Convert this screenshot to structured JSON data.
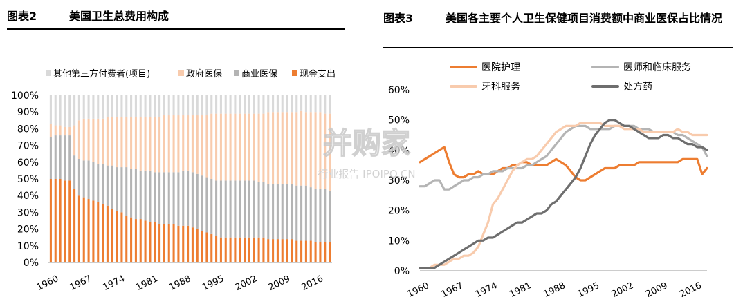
{
  "panel1": {
    "figno": "图表2",
    "title": "美国卫生总费用构成"
  },
  "panel2": {
    "figno": "图表3",
    "title": "美国各主要个人卫生保健项目消费额中商业医保占比情况"
  },
  "watermark": {
    "main": "并购家",
    "sub": "行业报告 IPOIPO.CN"
  },
  "colors": {
    "orange": "#ED7D31",
    "lightorange": "#F8CBAD",
    "gray": "#B4B4B4",
    "lightgray": "#D9D9D9",
    "darkgray": "#6E6E6E"
  },
  "chart_data": [
    {
      "type": "bar",
      "stacked": true,
      "percent": true,
      "x_start": 1960,
      "x_end": 2019,
      "x_ticks": [
        "1960",
        "1967",
        "1974",
        "1981",
        "1988",
        "1995",
        "2002",
        "2009",
        "2016"
      ],
      "y_ticks": [
        "0%",
        "10%",
        "20%",
        "30%",
        "40%",
        "50%",
        "60%",
        "70%",
        "80%",
        "90%",
        "100%"
      ],
      "ylim": [
        0,
        100
      ],
      "legend_position": "top",
      "series": [
        {
          "name": "其他第三方付费者(项目)",
          "color": "#D9D9D9",
          "values": "remainder to 100%"
        },
        {
          "name": "政府医保",
          "color": "#F8CBAD",
          "cumulative_top": [
            83,
            82,
            82,
            81,
            81,
            82,
            85,
            86,
            86,
            86,
            86,
            86,
            87,
            87,
            87,
            87,
            87,
            87,
            87,
            87,
            87,
            87,
            87,
            87,
            88,
            88,
            88,
            88,
            88,
            88,
            88,
            88,
            88,
            88,
            89,
            89,
            89,
            89,
            89,
            89,
            89,
            89,
            89,
            89,
            89,
            89,
            90,
            90,
            90,
            90,
            90,
            90,
            90,
            91,
            90,
            90,
            90,
            90,
            89,
            89
          ]
        },
        {
          "name": "商业医保",
          "color": "#B4B4B4",
          "cumulative_top": [
            75,
            76,
            76,
            76,
            76,
            64,
            62,
            61,
            61,
            60,
            59,
            59,
            58,
            58,
            57,
            57,
            57,
            56,
            56,
            55,
            55,
            55,
            54,
            54,
            54,
            54,
            54,
            54,
            55,
            55,
            54,
            53,
            52,
            51,
            50,
            49,
            49,
            49,
            49,
            49,
            49,
            49,
            49,
            49,
            48,
            48,
            47,
            47,
            47,
            47,
            47,
            47,
            46,
            46,
            46,
            45,
            44,
            44,
            44,
            43
          ]
        },
        {
          "name": "现金支出",
          "color": "#ED7D31",
          "values": [
            50,
            50,
            50,
            49,
            49,
            44,
            40,
            39,
            38,
            37,
            36,
            35,
            34,
            32,
            31,
            30,
            28,
            27,
            26,
            26,
            25,
            24,
            24,
            23,
            23,
            23,
            23,
            22,
            22,
            22,
            21,
            20,
            19,
            18,
            17,
            16,
            15,
            15,
            15,
            15,
            15,
            15,
            15,
            15,
            15,
            15,
            14,
            14,
            14,
            14,
            14,
            14,
            13,
            13,
            13,
            13,
            12,
            12,
            12,
            12
          ]
        }
      ]
    },
    {
      "type": "line",
      "x": [
        1960,
        1961,
        1962,
        1963,
        1964,
        1965,
        1966,
        1967,
        1968,
        1969,
        1970,
        1971,
        1972,
        1973,
        1974,
        1975,
        1976,
        1977,
        1978,
        1979,
        1980,
        1981,
        1982,
        1983,
        1984,
        1985,
        1986,
        1987,
        1988,
        1989,
        1990,
        1991,
        1992,
        1993,
        1994,
        1995,
        1996,
        1997,
        1998,
        1999,
        2000,
        2001,
        2002,
        2003,
        2004,
        2005,
        2006,
        2007,
        2008,
        2009,
        2010,
        2011,
        2012,
        2013,
        2014,
        2015,
        2016,
        2017,
        2018,
        2019
      ],
      "x_ticks": [
        "1960",
        "1967",
        "1974",
        "1981",
        "1988",
        "1995",
        "2002",
        "2009",
        "2016"
      ],
      "y_ticks": [
        "0%",
        "10%",
        "20%",
        "30%",
        "40%",
        "50%",
        "60%"
      ],
      "ylim": [
        0,
        60
      ],
      "legend_position": "top",
      "series": [
        {
          "name": "医院护理",
          "color": "#ED7D31",
          "values": [
            36,
            37,
            38,
            39,
            40,
            41,
            36,
            32,
            31,
            31,
            32,
            32,
            33,
            32,
            32,
            32,
            33,
            34,
            34,
            35,
            35,
            36,
            36,
            35,
            35,
            35,
            35,
            36,
            37,
            36,
            35,
            33,
            31,
            30,
            30,
            31,
            32,
            33,
            34,
            34,
            34,
            35,
            35,
            35,
            35,
            36,
            36,
            36,
            36,
            36,
            36,
            36,
            36,
            36,
            37,
            37,
            37,
            37,
            32,
            34
          ]
        },
        {
          "name": "医师和临床服务",
          "color": "#B4B4B4",
          "values": [
            28,
            28,
            29,
            30,
            30,
            27,
            27,
            28,
            29,
            30,
            30,
            31,
            31,
            32,
            32,
            33,
            33,
            33,
            34,
            34,
            34,
            34,
            35,
            35,
            36,
            37,
            38,
            40,
            42,
            44,
            46,
            47,
            48,
            48,
            48,
            47,
            47,
            47,
            47,
            47,
            48,
            48,
            48,
            48,
            48,
            47,
            47,
            47,
            46,
            46,
            46,
            46,
            46,
            45,
            45,
            44,
            43,
            42,
            41,
            38
          ]
        },
        {
          "name": "牙科服务",
          "color": "#F8CBAD",
          "values": [
            1,
            1,
            1,
            2,
            2,
            2,
            3,
            4,
            4,
            5,
            5,
            6,
            8,
            12,
            16,
            22,
            24,
            27,
            30,
            33,
            35,
            36,
            37,
            37,
            38,
            40,
            42,
            44,
            46,
            47,
            48,
            48,
            48,
            49,
            49,
            49,
            49,
            49,
            48,
            48,
            48,
            48,
            47,
            47,
            47,
            47,
            46,
            46,
            46,
            46,
            46,
            46,
            46,
            47,
            46,
            46,
            45,
            45,
            45,
            45
          ]
        },
        {
          "name": "处方药",
          "color": "#6E6E6E",
          "values": [
            1,
            1,
            1,
            1,
            2,
            3,
            4,
            5,
            6,
            7,
            8,
            9,
            10,
            10,
            11,
            11,
            12,
            13,
            14,
            15,
            16,
            16,
            17,
            18,
            19,
            19,
            20,
            22,
            23,
            25,
            27,
            29,
            31,
            34,
            38,
            42,
            45,
            47,
            49,
            50,
            50,
            49,
            48,
            48,
            47,
            46,
            45,
            44,
            44,
            44,
            45,
            45,
            44,
            44,
            43,
            42,
            42,
            41,
            41,
            40
          ]
        }
      ]
    }
  ]
}
